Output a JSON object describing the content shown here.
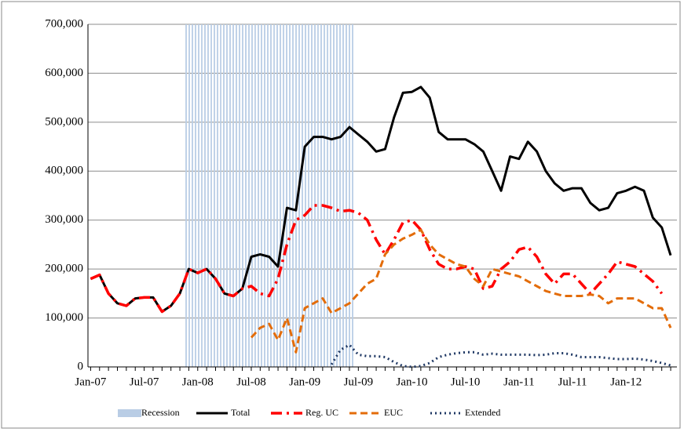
{
  "chart_data": {
    "type": "line",
    "categories": [
      "Jan-07",
      null,
      null,
      null,
      null,
      null,
      "Jul-07",
      null,
      null,
      null,
      null,
      null,
      "Jan-08",
      null,
      null,
      null,
      null,
      null,
      "Jul-08",
      null,
      null,
      null,
      null,
      null,
      "Jan-09",
      null,
      null,
      null,
      null,
      null,
      "Jul-09",
      null,
      null,
      null,
      null,
      null,
      "Jan-10",
      null,
      null,
      null,
      null,
      null,
      "Jul-10",
      null,
      null,
      null,
      null,
      null,
      "Jan-11",
      null,
      null,
      null,
      null,
      null,
      "Jul-11",
      null,
      null,
      null,
      null,
      null,
      "Jan-12",
      null,
      null,
      null,
      null,
      null
    ],
    "ylim": [
      0,
      700000
    ],
    "yticks": [
      0,
      {
        "value": 100000,
        "label": "100,000"
      },
      {
        "value": 200000,
        "label": "200,000"
      },
      {
        "value": 300000,
        "label": "300,000"
      },
      {
        "value": 400000,
        "label": "400,000"
      },
      {
        "value": 500000,
        "label": "500,000"
      },
      {
        "value": 600000,
        "label": "600,000"
      },
      {
        "value": 700000,
        "label": "700,000"
      }
    ],
    "grid": true,
    "legend": "bottom",
    "series": [
      {
        "name": "Recession",
        "color": "#b9cde5",
        "style": "band",
        "values": [
          null,
          null,
          null,
          null,
          null,
          null,
          null,
          null,
          null,
          null,
          null,
          700000,
          700000,
          700000,
          700000,
          700000,
          700000,
          700000,
          700000,
          700000,
          700000,
          700000,
          700000,
          700000,
          700000,
          700000,
          700000,
          700000,
          700000,
          700000,
          null,
          null,
          null,
          null,
          null,
          null,
          null,
          null,
          null,
          null,
          null,
          null,
          null,
          null,
          null,
          null,
          null,
          null,
          null,
          null,
          null,
          null,
          null,
          null,
          null,
          null,
          null,
          null,
          null,
          null,
          null,
          null,
          null,
          null,
          null,
          null
        ]
      },
      {
        "name": "Total",
        "color": "#000000",
        "style": "solid",
        "values": [
          180000,
          188000,
          150000,
          130000,
          125000,
          140000,
          142000,
          142000,
          113000,
          125000,
          150000,
          200000,
          192000,
          200000,
          180000,
          150000,
          145000,
          160000,
          225000,
          230000,
          225000,
          205000,
          325000,
          320000,
          450000,
          470000,
          470000,
          465000,
          470000,
          490000,
          475000,
          460000,
          440000,
          445000,
          510000,
          560000,
          562000,
          572000,
          550000,
          480000,
          465000,
          465000,
          465000,
          455000,
          440000,
          400000,
          360000,
          430000,
          425000,
          460000,
          440000,
          400000,
          375000,
          360000,
          365000,
          365000,
          335000,
          320000,
          325000,
          355000,
          360000,
          368000,
          360000,
          305000,
          285000,
          228000
        ]
      },
      {
        "name": "Reg. UC",
        "color": "#ff0000",
        "style": "dashdot",
        "values": [
          180000,
          188000,
          150000,
          130000,
          125000,
          140000,
          142000,
          142000,
          113000,
          125000,
          150000,
          200000,
          192000,
          200000,
          180000,
          150000,
          145000,
          160000,
          165000,
          150000,
          145000,
          180000,
          250000,
          300000,
          310000,
          330000,
          330000,
          325000,
          318000,
          320000,
          315000,
          300000,
          260000,
          230000,
          260000,
          295000,
          300000,
          280000,
          240000,
          210000,
          200000,
          200000,
          205000,
          200000,
          160000,
          165000,
          200000,
          215000,
          240000,
          245000,
          225000,
          190000,
          170000,
          190000,
          190000,
          170000,
          150000,
          170000,
          190000,
          215000,
          210000,
          205000,
          190000,
          175000,
          150000,
          null
        ]
      },
      {
        "name": "EUC",
        "color": "#e36c09",
        "style": "dash",
        "values": [
          null,
          null,
          null,
          null,
          null,
          null,
          null,
          null,
          null,
          null,
          null,
          null,
          null,
          null,
          null,
          null,
          null,
          null,
          60000,
          80000,
          88000,
          55000,
          100000,
          30000,
          120000,
          130000,
          140000,
          110000,
          120000,
          130000,
          150000,
          170000,
          180000,
          230000,
          250000,
          262000,
          270000,
          280000,
          250000,
          230000,
          220000,
          210000,
          205000,
          180000,
          165000,
          200000,
          195000,
          190000,
          185000,
          175000,
          165000,
          155000,
          150000,
          145000,
          145000,
          145000,
          148000,
          145000,
          130000,
          140000,
          140000,
          140000,
          130000,
          120000,
          120000,
          80000
        ]
      },
      {
        "name": "Extended",
        "color": "#1f3864",
        "style": "dot",
        "values": [
          null,
          null,
          null,
          null,
          null,
          null,
          null,
          null,
          null,
          null,
          null,
          null,
          null,
          null,
          null,
          null,
          null,
          null,
          null,
          null,
          null,
          null,
          null,
          null,
          null,
          null,
          null,
          5000,
          35000,
          45000,
          25000,
          22000,
          22000,
          20000,
          10000,
          2000,
          0,
          2000,
          8000,
          20000,
          25000,
          28000,
          30000,
          30000,
          25000,
          27000,
          25000,
          25000,
          25000,
          25000,
          24000,
          25000,
          28000,
          28000,
          25000,
          20000,
          20000,
          20000,
          18000,
          16000,
          16000,
          17000,
          15000,
          12000,
          8000,
          3000
        ]
      }
    ]
  }
}
